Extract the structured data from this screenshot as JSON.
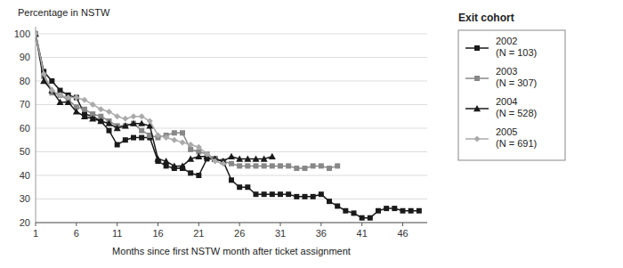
{
  "chart_data": {
    "type": "line",
    "ylabel": "Percentage in NSTW",
    "xlabel": "Months since first NSTW month after ticket assignment",
    "legend_title": "Exit cohort",
    "legend": "right",
    "grid": true,
    "xlim": [
      1,
      49
    ],
    "ylim": [
      20,
      103
    ],
    "xticks": [
      1,
      6,
      11,
      16,
      21,
      26,
      31,
      36,
      41,
      46
    ],
    "yticks": [
      20,
      30,
      40,
      50,
      60,
      70,
      80,
      90,
      100
    ],
    "series": [
      {
        "name": "2002\n(N = 103)",
        "color": "#1a1a1a",
        "marker": "square",
        "x": [
          1,
          2,
          3,
          4,
          5,
          6,
          7,
          8,
          9,
          10,
          11,
          12,
          13,
          14,
          15,
          16,
          17,
          18,
          19,
          20,
          21,
          22,
          23,
          24,
          25,
          26,
          27,
          28,
          29,
          30,
          31,
          32,
          33,
          34,
          35,
          36,
          37,
          38,
          39,
          40,
          41,
          42,
          43,
          44,
          45,
          46,
          47,
          48
        ],
        "values": [
          100,
          84,
          80,
          76,
          74,
          73,
          66,
          65,
          63,
          59,
          53,
          55,
          56,
          56,
          56,
          46,
          44,
          43,
          43,
          41,
          40,
          47,
          47,
          46,
          38,
          35,
          35,
          32,
          32,
          32,
          32,
          32,
          31,
          31,
          31,
          32,
          29,
          27,
          25,
          24,
          22,
          22,
          25,
          26,
          26,
          25,
          25,
          25
        ]
      },
      {
        "name": "2003\n(N = 307)",
        "color": "#888888",
        "marker": "square",
        "x": [
          1,
          2,
          3,
          4,
          5,
          6,
          7,
          8,
          9,
          10,
          11,
          12,
          13,
          14,
          15,
          16,
          17,
          18,
          19,
          20,
          21,
          22,
          23,
          24,
          25,
          26,
          27,
          28,
          29,
          30,
          31,
          32,
          33,
          34,
          35,
          36,
          37,
          38
        ],
        "values": [
          100,
          82,
          75,
          74,
          72,
          69,
          68,
          66,
          65,
          63,
          61,
          61,
          62,
          59,
          57,
          56,
          57,
          58,
          58,
          51,
          50,
          49,
          47,
          46,
          45,
          44,
          44,
          44,
          44,
          44,
          44,
          44,
          43,
          43,
          44,
          44,
          43,
          44
        ]
      },
      {
        "name": "2004\n(N = 528)",
        "color": "#1a1a1a",
        "marker": "triangle",
        "x": [
          1,
          2,
          3,
          4,
          5,
          6,
          7,
          8,
          9,
          10,
          11,
          12,
          13,
          14,
          15,
          16,
          17,
          18,
          19,
          20,
          21,
          22,
          23,
          24,
          25,
          26,
          27,
          28,
          29,
          30
        ],
        "values": [
          100,
          80,
          76,
          71,
          71,
          67,
          65,
          64,
          63,
          62,
          60,
          61,
          62,
          62,
          61,
          47,
          46,
          44,
          44,
          47,
          48,
          48,
          47,
          46,
          48,
          47,
          47,
          47,
          47,
          48
        ]
      },
      {
        "name": "2005\n(N = 691)",
        "color": "#aaaaaa",
        "marker": "diamond",
        "x": [
          1,
          2,
          3,
          4,
          5,
          6,
          7,
          8,
          9,
          10,
          11,
          12,
          13,
          14,
          15,
          16,
          17,
          18,
          19,
          20,
          21,
          22,
          23,
          24
        ],
        "values": [
          100,
          83,
          76,
          74,
          73,
          73,
          72,
          70,
          68,
          67,
          65,
          64,
          65,
          65,
          63,
          57,
          56,
          55,
          54,
          53,
          52,
          49,
          46,
          45
        ]
      }
    ]
  }
}
